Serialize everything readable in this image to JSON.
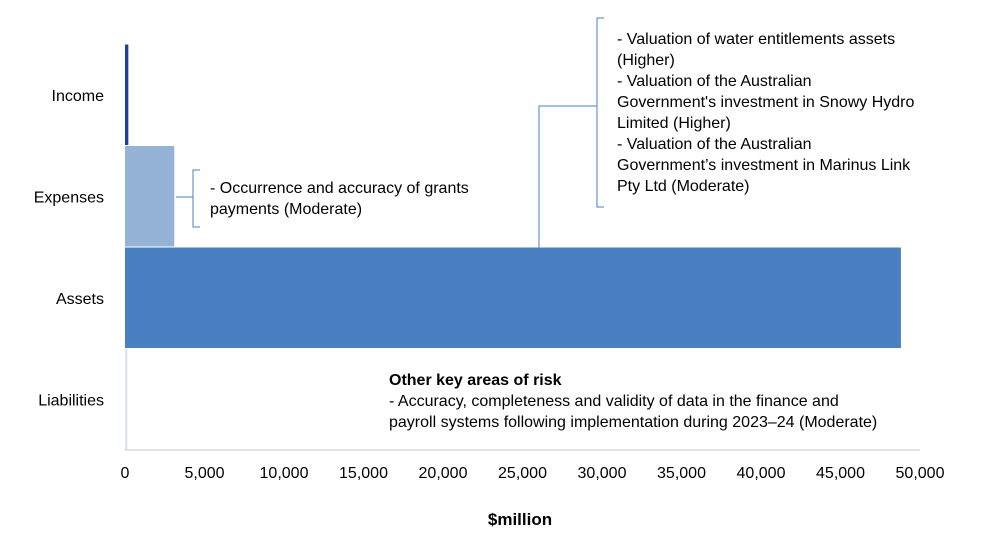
{
  "chart_data": {
    "type": "bar",
    "orientation": "horizontal",
    "categories": [
      "Income",
      "Expenses",
      "Assets",
      "Liabilities"
    ],
    "values": [
      210,
      3100,
      48800,
      150
    ],
    "colors": [
      "#1f3fa6",
      "#95b3d7",
      "#4a7fc1",
      "#dce6f2"
    ],
    "xlabel": "$million",
    "xlim": [
      0,
      50000
    ],
    "xticks": [
      0,
      5000,
      10000,
      15000,
      20000,
      25000,
      30000,
      35000,
      40000,
      45000,
      50000
    ],
    "xtick_labels": [
      "0",
      "5,000",
      "10,000",
      "15,000",
      "20,000",
      "25,000",
      "30,000",
      "35,000",
      "40,000",
      "45,000",
      "50,000"
    ],
    "grid": false,
    "annotations": {
      "expenses": [
        "- Occurrence and accuracy of grants",
        "payments (Moderate)"
      ],
      "assets": [
        "- Valuation of water entitlements assets",
        "(Higher)",
        "- Valuation of the Australian",
        "Government's investment in Snowy Hydro",
        "Limited (Higher)",
        "- Valuation of the Australian",
        "Government’s investment in Marinus Link",
        "Pty Ltd (Moderate)"
      ],
      "other_title": "Other key areas of risk",
      "other": [
        "- Accuracy, completeness and validity of data in the finance and",
        "payroll systems following implementation during 2023–24 (Moderate)"
      ]
    },
    "bracket_color": "#4a7fc1",
    "axis_color": "#c8c8c8"
  }
}
